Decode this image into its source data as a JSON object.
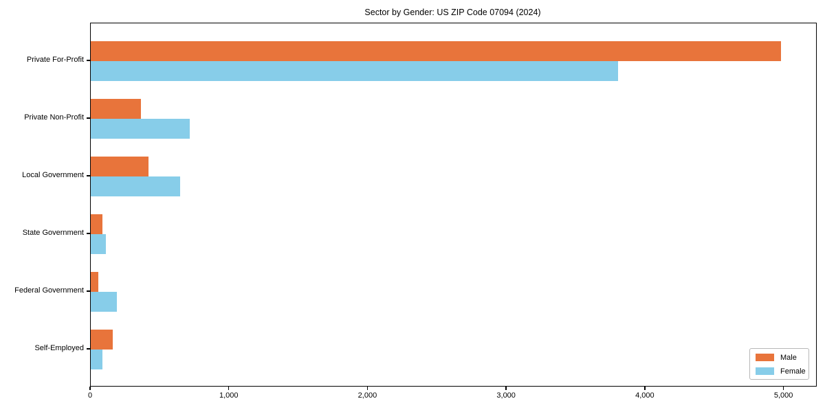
{
  "chart_data": {
    "type": "bar",
    "orientation": "horizontal",
    "title": "Sector by Gender: US ZIP Code 07094 (2024)",
    "categories": [
      "Private For-Profit",
      "Private Non-Profit",
      "Local Government",
      "State Government",
      "Federal Government",
      "Self-Employed"
    ],
    "series": [
      {
        "name": "Male",
        "color": "#E8743B",
        "values": [
          4975,
          360,
          415,
          85,
          55,
          160
        ]
      },
      {
        "name": "Female",
        "color": "#87CDE9",
        "values": [
          3800,
          715,
          645,
          110,
          190,
          85
        ]
      }
    ],
    "xlabel": "",
    "ylabel": "",
    "xlim": [
      0,
      5230
    ],
    "xticks": {
      "values": [
        0,
        1000,
        2000,
        3000,
        4000,
        5000
      ],
      "labels": [
        "0",
        "1,000",
        "2,000",
        "3,000",
        "4,000",
        "5,000"
      ]
    },
    "grid": false,
    "legend": {
      "position": "lower right",
      "entries": [
        "Male",
        "Female"
      ]
    },
    "spine_color": "#000000",
    "background_color": "#ffffff"
  }
}
